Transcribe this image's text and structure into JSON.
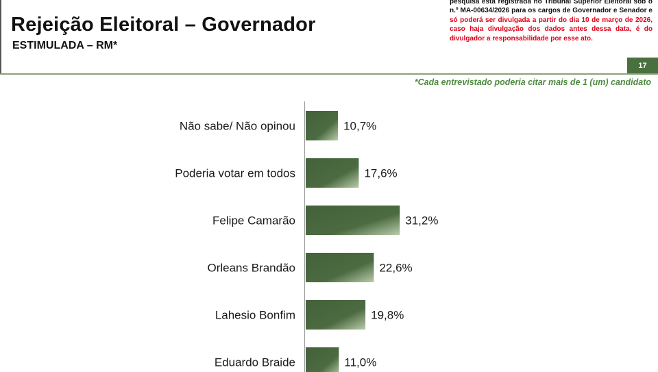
{
  "header": {
    "title": "Rejeição Eleitoral – Governador",
    "subtitle": "ESTIMULADA – RM*",
    "disclaimer_black_1": "pesquisa está registrada no Tribunal Superior Eleitoral sob o n.º MA-00634/2026 para os cargos de Governador e Senador e ",
    "disclaimer_red": "só poderá ser divulgada a partir do dia 10 de março de 2026, caso haja divulgação dos dados antes dessa data, é do divulgador a responsabilidade por esse ato.",
    "page_number": "17",
    "note": "*Cada entrevistado poderia citar mais de 1 (um) candidato"
  },
  "colors": {
    "bar_dark": "#44613a",
    "bar_light": "#b9ccac",
    "accent_green": "#4a7040",
    "note_green": "#4e8a3e",
    "disclaimer_red": "#e0001a"
  },
  "chart_data": {
    "type": "bar",
    "orientation": "horizontal",
    "categories": [
      "Não sabe/ Não opinou",
      "Poderia votar em todos",
      "Felipe Camarão",
      "Orleans Brandão",
      "Lahesio Bonfim",
      "Eduardo Braide"
    ],
    "values": [
      10.7,
      17.6,
      31.2,
      22.6,
      19.8,
      11.0
    ],
    "value_labels": [
      "10,7%",
      "17,6%",
      "31,2%",
      "22,6%",
      "19,8%",
      "11,0%"
    ],
    "unit": "%",
    "grid": false,
    "legend": "none"
  }
}
